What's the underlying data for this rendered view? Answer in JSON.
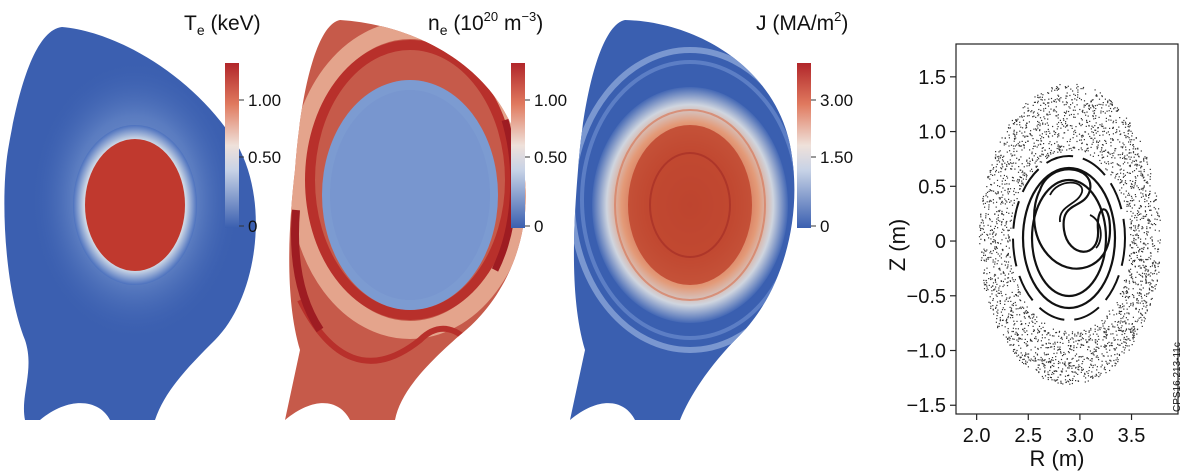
{
  "panels": [
    {
      "quantity": "T",
      "subscript": "e",
      "unit_text": " (keV)",
      "colorbar_ticks": [
        "1.00",
        "0.50",
        "0"
      ]
    },
    {
      "quantity": "n",
      "subscript": "e",
      "unit_prefix": " (10",
      "unit_sup1": "20",
      "unit_mid": " m",
      "unit_sup2": "−3",
      "unit_suffix": ")",
      "colorbar_ticks": [
        "1.00",
        "0.50",
        "0"
      ]
    },
    {
      "quantity": "J (MA/m",
      "unit_sup": "2",
      "unit_suffix": ")",
      "colorbar_ticks": [
        "3.00",
        "1.50",
        "0"
      ]
    }
  ],
  "colors": {
    "low": "#3a5fb0",
    "mid": "#dfe6ef",
    "high": "#b1262a",
    "high_dark": "#9e1c22"
  },
  "chart_data": {
    "type": "scatter",
    "xlabel": "R (m)",
    "ylabel": "Z (m)",
    "xlim": [
      1.8,
      3.95
    ],
    "ylim": [
      -1.58,
      1.8
    ],
    "xticks": [
      "2.0",
      "2.5",
      "3.0",
      "3.5"
    ],
    "yticks": [
      "1.5",
      "1.0",
      "0.5",
      "0",
      "−0.5",
      "−1.0",
      "−1.5"
    ],
    "grid": false,
    "series": [
      {
        "description_points": "Poincare puncture plot of magnetic field lines",
        "center": [
          2.9,
          0.0
        ]
      }
    ]
  },
  "figure_code": "CPS16.213-11c"
}
